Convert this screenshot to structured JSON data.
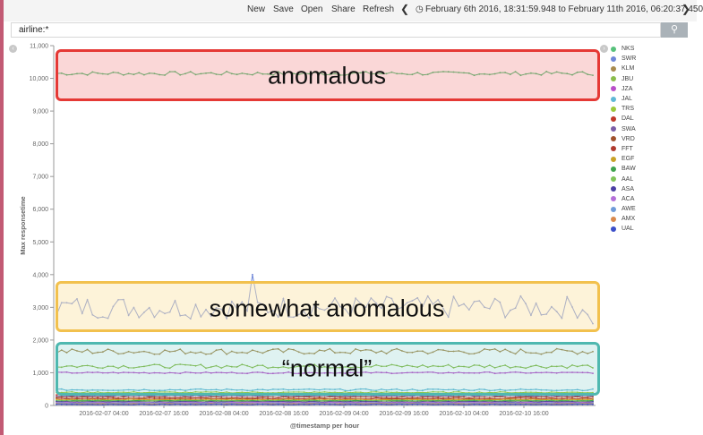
{
  "toolbar": {
    "new": "New",
    "save": "Save",
    "open": "Open",
    "share": "Share",
    "refresh": "Refresh",
    "time_range": "February 6th 2016, 18:31:59.948 to February 11th 2016, 06:20:37.450"
  },
  "search": {
    "query": "airline:*",
    "button_icon": "search-icon"
  },
  "chart_data": {
    "type": "line",
    "ylabel": "Max responsetime",
    "xlabel": "@timestamp per hour",
    "ylim": [
      0,
      11000
    ],
    "y_ticks": [
      "0",
      "1,000",
      "2,000",
      "3,000",
      "4,000",
      "5,000",
      "6,000",
      "7,000",
      "8,000",
      "9,000",
      "10,000",
      "11,000"
    ],
    "x_tick_labels": [
      "2016-02-07 04:00",
      "2016-02-07 16:00",
      "2016-02-08 04:00",
      "2016-02-08 16:00",
      "2016-02-09 04:00",
      "2016-02-09 16:00",
      "2016-02-10 04:00",
      "2016-02-10 16:00"
    ],
    "grid": false,
    "legend_position": "right",
    "series": [
      {
        "name": "NKS",
        "color": "#57c17b",
        "level": 10150,
        "noise": 60
      },
      {
        "name": "SWR",
        "color": "#6f87d8",
        "level": 3000,
        "noise": 350
      },
      {
        "name": "KLM",
        "color": "#a88b4f",
        "level": 1650,
        "noise": 90
      },
      {
        "name": "JBU",
        "color": "#8bbd4c",
        "level": 1200,
        "noise": 60
      },
      {
        "name": "JZA",
        "color": "#b94fc9",
        "level": 1000,
        "noise": 20
      },
      {
        "name": "JAL",
        "color": "#5fb8d6",
        "level": 480,
        "noise": 25
      },
      {
        "name": "TRS",
        "color": "#9bc93b",
        "level": 400,
        "noise": 20
      },
      {
        "name": "DAL",
        "color": "#c0392b",
        "level": 330,
        "noise": 15
      },
      {
        "name": "SWA",
        "color": "#7b5ea7",
        "level": 290,
        "noise": 15
      },
      {
        "name": "VRD",
        "color": "#a0522d",
        "level": 250,
        "noise": 15
      },
      {
        "name": "FFT",
        "color": "#b03a2e",
        "level": 210,
        "noise": 12
      },
      {
        "name": "EGF",
        "color": "#c9a227",
        "level": 180,
        "noise": 12
      },
      {
        "name": "BAW",
        "color": "#3fa34d",
        "level": 150,
        "noise": 10
      },
      {
        "name": "AAL",
        "color": "#82c45a",
        "level": 130,
        "noise": 10
      },
      {
        "name": "ASA",
        "color": "#4b3fa3",
        "level": 110,
        "noise": 10
      },
      {
        "name": "ACA",
        "color": "#b46fd8",
        "level": 90,
        "noise": 8
      },
      {
        "name": "AWE",
        "color": "#6f9bd8",
        "level": 70,
        "noise": 8
      },
      {
        "name": "AMX",
        "color": "#d9894c",
        "level": 50,
        "noise": 6
      },
      {
        "name": "UAL",
        "color": "#3b4fc9",
        "level": 30,
        "noise": 6
      }
    ]
  },
  "annotations": {
    "anomalous": "anomalous",
    "somewhat": "somewhat anomalous",
    "normal": "“normal”",
    "colors": {
      "red": "#e53935",
      "yellow": "#f2c14e",
      "teal": "#4fb8b0"
    }
  }
}
